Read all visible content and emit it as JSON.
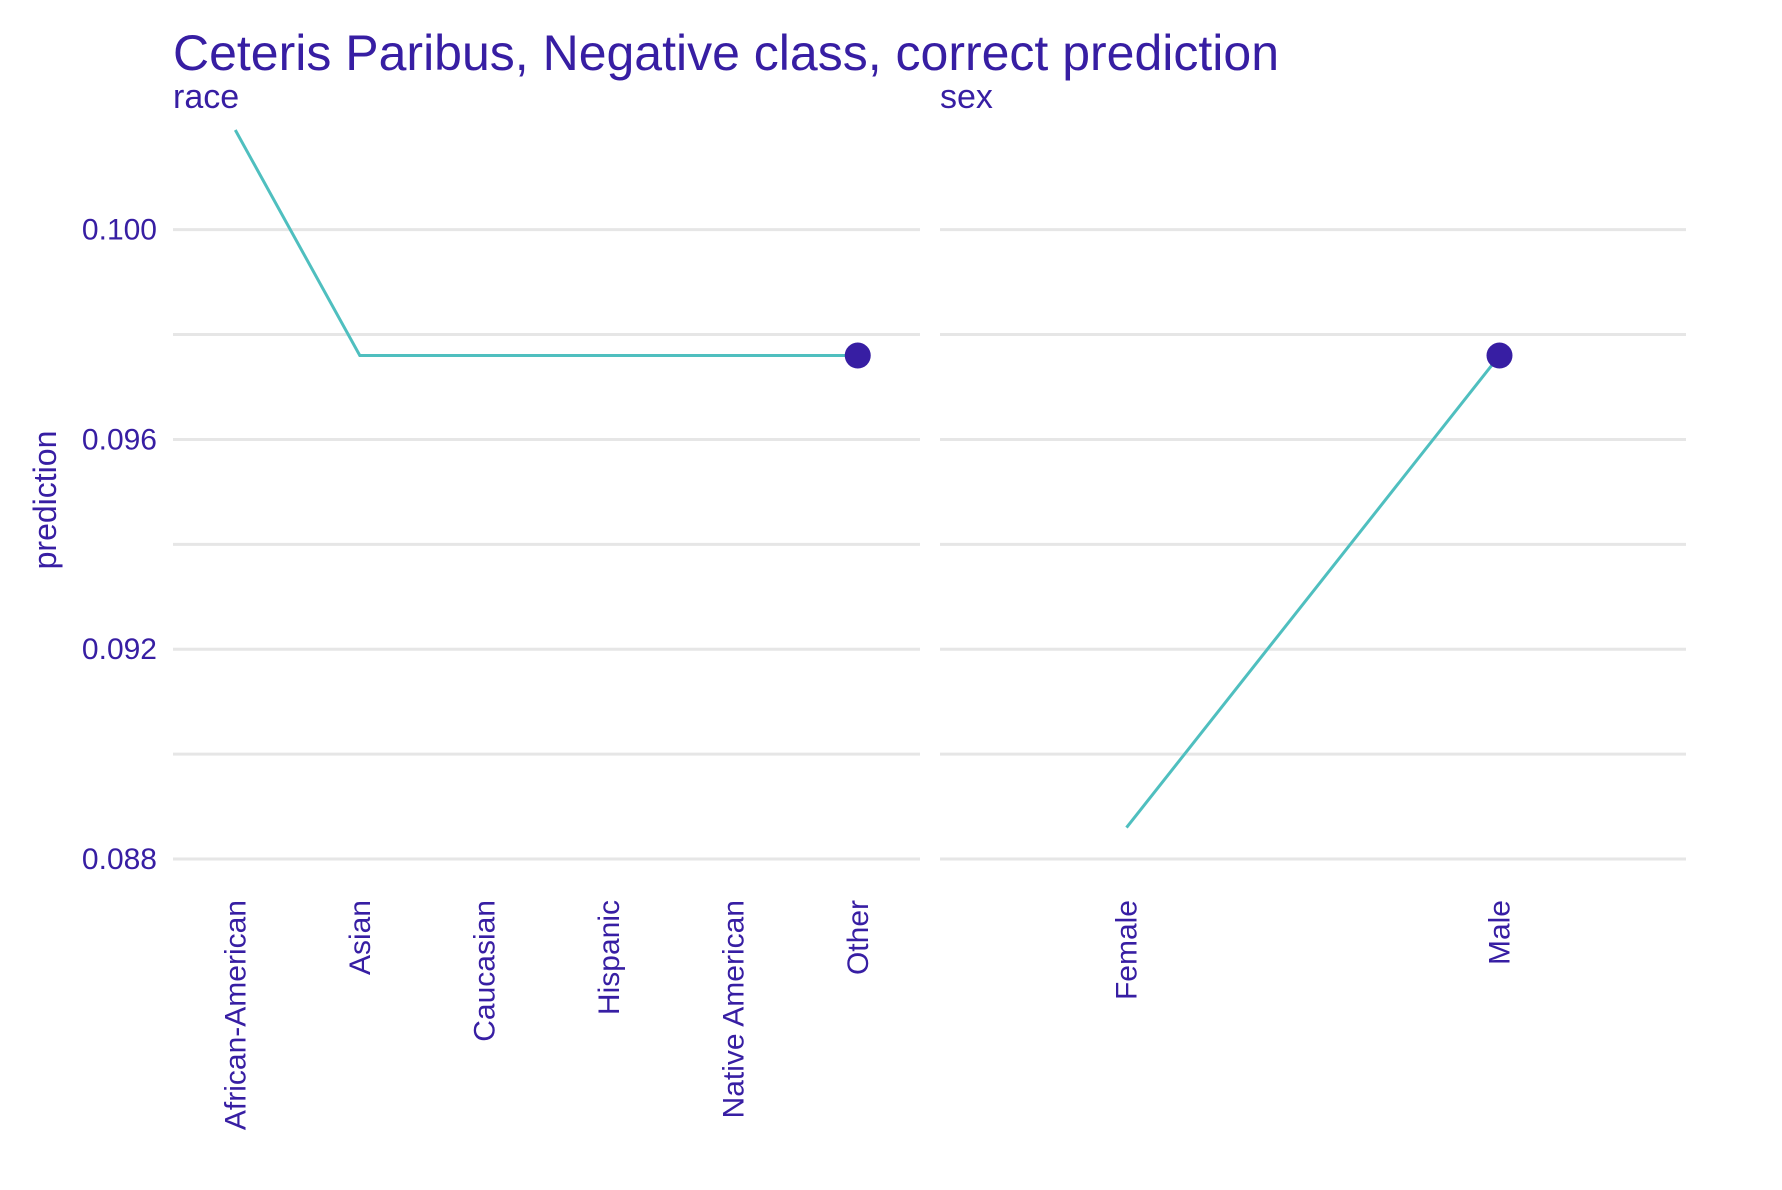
{
  "chart_data": {
    "type": "line",
    "title": "Ceteris Paribus, Negative class, correct prediction",
    "ylabel": "prediction",
    "ylim": [
      0.0876,
      0.1019
    ],
    "y_ticks": [
      0.088,
      0.092,
      0.096,
      0.1
    ],
    "y_tick_labels": [
      "0.088",
      "0.092",
      "0.096",
      "0.100"
    ],
    "grid": true,
    "colors": {
      "line": "#4fbfbf",
      "point": "#371ea3",
      "text": "#371ea3",
      "grid": "#e6e6e6"
    },
    "panels": [
      {
        "facet": "race",
        "categories": [
          "African-American",
          "Asian",
          "Caucasian",
          "Hispanic",
          "Native American",
          "Other"
        ],
        "series": [
          {
            "values": [
              0.1019,
              0.0976,
              0.0976,
              0.0976,
              0.0976,
              0.0976
            ]
          }
        ],
        "observation": {
          "category": "Other",
          "value": 0.0976
        }
      },
      {
        "facet": "sex",
        "categories": [
          "Female",
          "Male"
        ],
        "series": [
          {
            "values": [
              0.0886,
              0.0976
            ]
          }
        ],
        "observation": {
          "category": "Male",
          "value": 0.0976
        }
      }
    ]
  }
}
